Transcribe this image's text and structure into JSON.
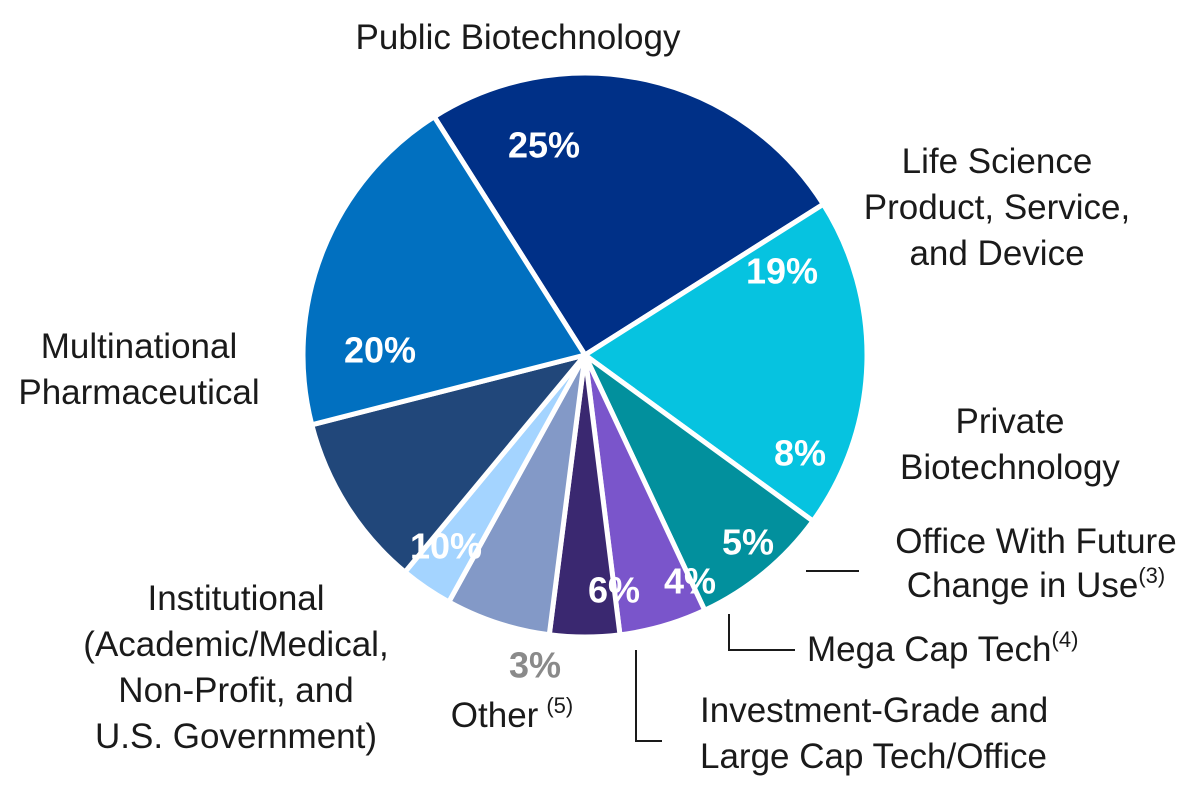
{
  "chart_data": {
    "type": "pie",
    "title": "",
    "slices": [
      {
        "key": "public-biotech",
        "label_lines": [
          "Public Biotechnology"
        ],
        "value": 25,
        "value_label": "25%",
        "color": "#003087"
      },
      {
        "key": "life-science",
        "label_lines": [
          "Life Science",
          "Product, Service,",
          "and Device"
        ],
        "value": 19,
        "value_label": "19%",
        "color": "#06C3E0"
      },
      {
        "key": "private-biotech",
        "label_lines": [
          "Private",
          "Biotechnology"
        ],
        "value": 8,
        "value_label": "8%",
        "color": "#02909D"
      },
      {
        "key": "office-future-use",
        "label_lines": [
          "Office With Future",
          "Change in Use"
        ],
        "footnote": "(3)",
        "value": 5,
        "value_label": "5%",
        "color": "#7A55CB"
      },
      {
        "key": "mega-cap-tech",
        "label_lines": [
          "Mega Cap Tech"
        ],
        "footnote": "(4)",
        "value": 4,
        "value_label": "4%",
        "color": "#3A2870"
      },
      {
        "key": "investment-grade",
        "label_lines": [
          "Investment-Grade and",
          "Large Cap Tech/Office"
        ],
        "value": 6,
        "value_label": "6%",
        "color": "#8399C7"
      },
      {
        "key": "other",
        "label_lines": [
          "Other"
        ],
        "footnote": "(5)",
        "value": 3,
        "value_label": "3%",
        "color": "#A4D4FF"
      },
      {
        "key": "institutional",
        "label_lines": [
          "Institutional",
          "(Academic/Medical,",
          "Non-Profit, and",
          "U.S. Government)"
        ],
        "value": 10,
        "value_label": "10%",
        "color": "#21477A"
      },
      {
        "key": "multinational-pharma",
        "label_lines": [
          "Multinational",
          "Pharmaceutical"
        ],
        "value": 20,
        "value_label": "20%",
        "color": "#0170C0"
      }
    ],
    "legend": "none"
  }
}
